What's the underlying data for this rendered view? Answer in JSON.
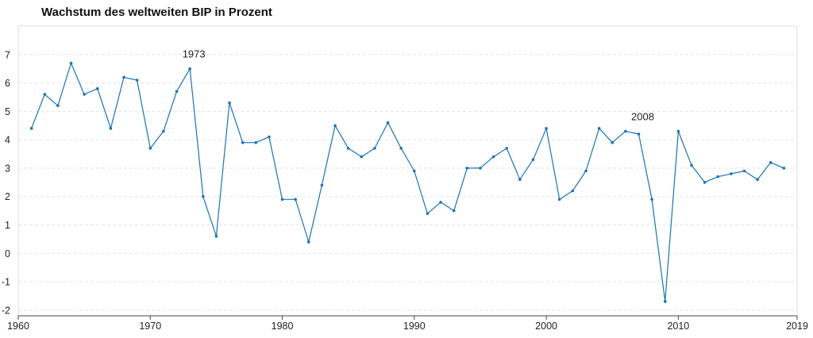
{
  "chart_data": {
    "type": "line",
    "title": "Wachstum des weltweiten BIP in Prozent",
    "xlabel": "",
    "ylabel": "",
    "xlim": [
      1960,
      2019
    ],
    "ylim": [
      -2.2,
      8
    ],
    "x_ticks": [
      "1960",
      "1970",
      "1980",
      "1990",
      "2000",
      "2010",
      "2019"
    ],
    "y_ticks": [
      "-2",
      "-1",
      "0",
      "1",
      "2",
      "3",
      "4",
      "5",
      "6",
      "7"
    ],
    "grid": "horizontal dashed",
    "series_color": "#1a73b5",
    "x": [
      1961,
      1962,
      1963,
      1964,
      1965,
      1966,
      1967,
      1968,
      1969,
      1970,
      1971,
      1972,
      1973,
      1974,
      1975,
      1976,
      1977,
      1978,
      1979,
      1980,
      1981,
      1982,
      1983,
      1984,
      1985,
      1986,
      1987,
      1988,
      1989,
      1990,
      1991,
      1992,
      1993,
      1994,
      1995,
      1996,
      1997,
      1998,
      1999,
      2000,
      2001,
      2002,
      2003,
      2004,
      2005,
      2006,
      2007,
      2008,
      2009,
      2010,
      2011,
      2012,
      2013,
      2014,
      2015,
      2016,
      2017,
      2018
    ],
    "series": [
      {
        "values": [
          4.4,
          5.6,
          5.2,
          6.7,
          5.6,
          5.8,
          4.4,
          6.2,
          6.1,
          3.7,
          4.3,
          5.7,
          6.5,
          2.0,
          0.6,
          5.3,
          3.9,
          3.9,
          4.1,
          1.9,
          1.9,
          0.4,
          2.4,
          4.5,
          3.7,
          3.4,
          3.7,
          4.6,
          3.7,
          2.9,
          1.4,
          1.8,
          1.5,
          3.0,
          3.0,
          3.4,
          3.7,
          2.6,
          3.3,
          4.4,
          1.9,
          2.2,
          2.9,
          4.4,
          3.9,
          4.3,
          4.2,
          1.9,
          -1.7,
          4.3,
          3.1,
          2.5,
          2.7,
          2.8,
          2.9,
          2.6,
          3.2,
          3.0
        ]
      }
    ],
    "annotations": [
      {
        "label": "1973",
        "x": 1973,
        "y": 6.5
      },
      {
        "label": "2008",
        "x": 2007,
        "y": 4.3
      }
    ]
  }
}
